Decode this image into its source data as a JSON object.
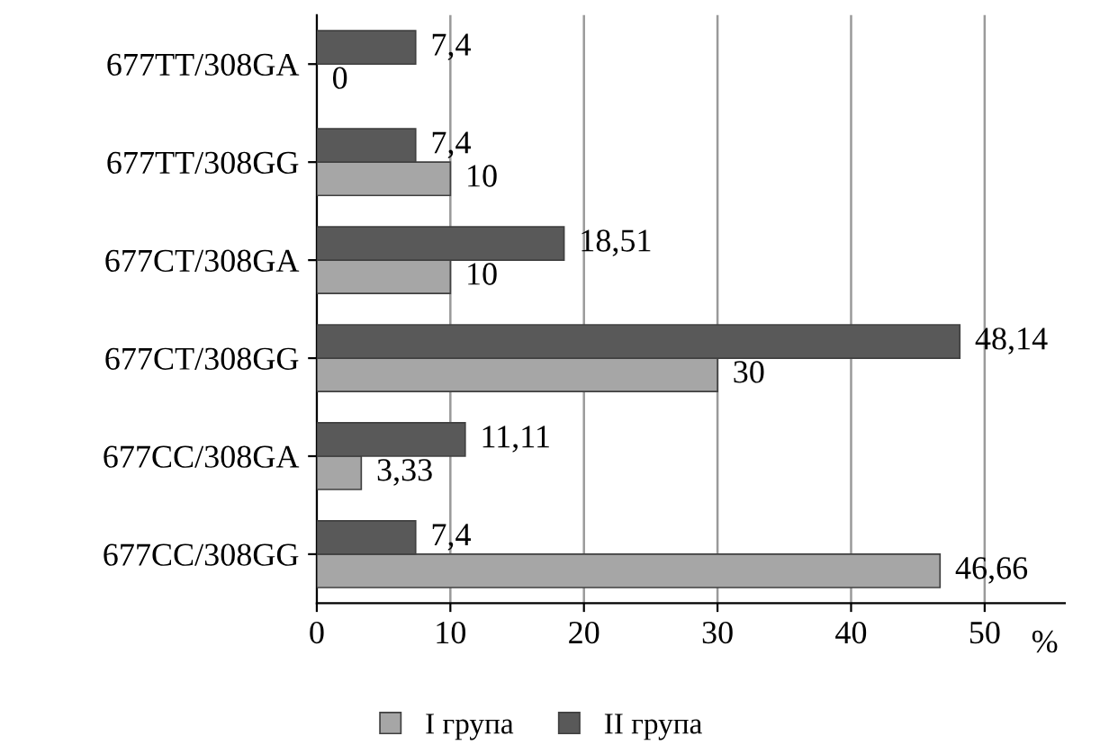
{
  "chart_data": {
    "type": "bar",
    "orientation": "horizontal",
    "xlabel": "%",
    "categories": [
      "677TT/308GA",
      "677TT/308GG",
      "677CT/308GA",
      "677CT/308GG",
      "677CC/308GA",
      "677CC/308GG"
    ],
    "series": [
      {
        "name": "I група",
        "color": "#a6a6a6",
        "values": [
          0,
          10,
          10,
          30,
          3.33,
          46.66
        ],
        "value_labels": [
          "0",
          "10",
          "10",
          "30",
          "3,33",
          "46,66"
        ]
      },
      {
        "name": "II група",
        "color": "#595959",
        "values": [
          7.4,
          7.4,
          18.51,
          48.14,
          11.11,
          7.4
        ],
        "value_labels": [
          "7,4",
          "7,4",
          "18,51",
          "48,14",
          "11,11",
          "7,4"
        ]
      }
    ],
    "xlim": [
      0,
      56
    ],
    "xticks": [
      0,
      10,
      20,
      30,
      40,
      50
    ],
    "grid": "x",
    "legend": "bottom"
  }
}
